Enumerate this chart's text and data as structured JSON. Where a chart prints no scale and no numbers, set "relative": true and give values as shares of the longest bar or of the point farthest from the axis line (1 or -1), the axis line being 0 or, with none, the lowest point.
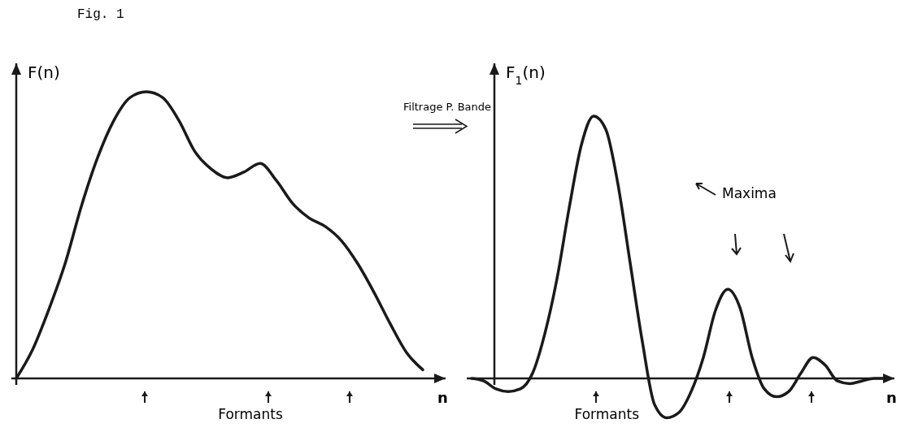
{
  "chart_data": [
    {
      "type": "line",
      "title": "Fig. 1",
      "ylabel": "F(n)",
      "xlabel": "n",
      "relative": true,
      "annotations": [
        "Formants"
      ],
      "categories": [
        null,
        null,
        null,
        null,
        null,
        null,
        null,
        null,
        null,
        null,
        null,
        null,
        null,
        null,
        null,
        null,
        null,
        null,
        null,
        null,
        null,
        null,
        null,
        null,
        null,
        null
      ],
      "series": [
        {
          "color": "#1a1a1a",
          "values": [
            0,
            0.1,
            0.24,
            0.4,
            0.6,
            0.77,
            0.9,
            0.98,
            1,
            0.98,
            0.9,
            0.79,
            0.73,
            0.7,
            0.72,
            0.75,
            0.69,
            0.61,
            0.56,
            0.53,
            0.48,
            0.4,
            0.3,
            0.19,
            0.09,
            0.03
          ]
        }
      ]
    },
    {
      "type": "line",
      "ylabel": "F$_{1}$(n)",
      "xlabel": "n",
      "relative": true,
      "annotations": [
        "Filtrage P. Bande",
        "Maxima",
        "Formants"
      ],
      "categories": [
        null,
        null,
        null,
        null,
        null,
        null,
        null,
        null,
        null,
        null,
        null,
        null,
        null,
        null,
        null,
        null,
        null,
        null,
        null,
        null,
        null,
        null,
        null,
        null,
        null,
        null,
        null,
        null,
        null,
        null,
        null,
        null,
        null,
        null,
        null
      ],
      "series": [
        {
          "color": "#1a1a1a",
          "values": [
            0,
            -0.01,
            -0.04,
            -0.05,
            -0.04,
            0.02,
            0.17,
            0.38,
            0.65,
            0.89,
            1,
            0.95,
            0.74,
            0.44,
            0.14,
            -0.1,
            -0.15,
            -0.13,
            -0.05,
            0.08,
            0.26,
            0.34,
            0.27,
            0.08,
            -0.04,
            -0.07,
            -0.05,
            0.02,
            0.08,
            0.05,
            -0.01,
            -0.02,
            -0.01,
            0,
            0
          ]
        }
      ]
    }
  ]
}
